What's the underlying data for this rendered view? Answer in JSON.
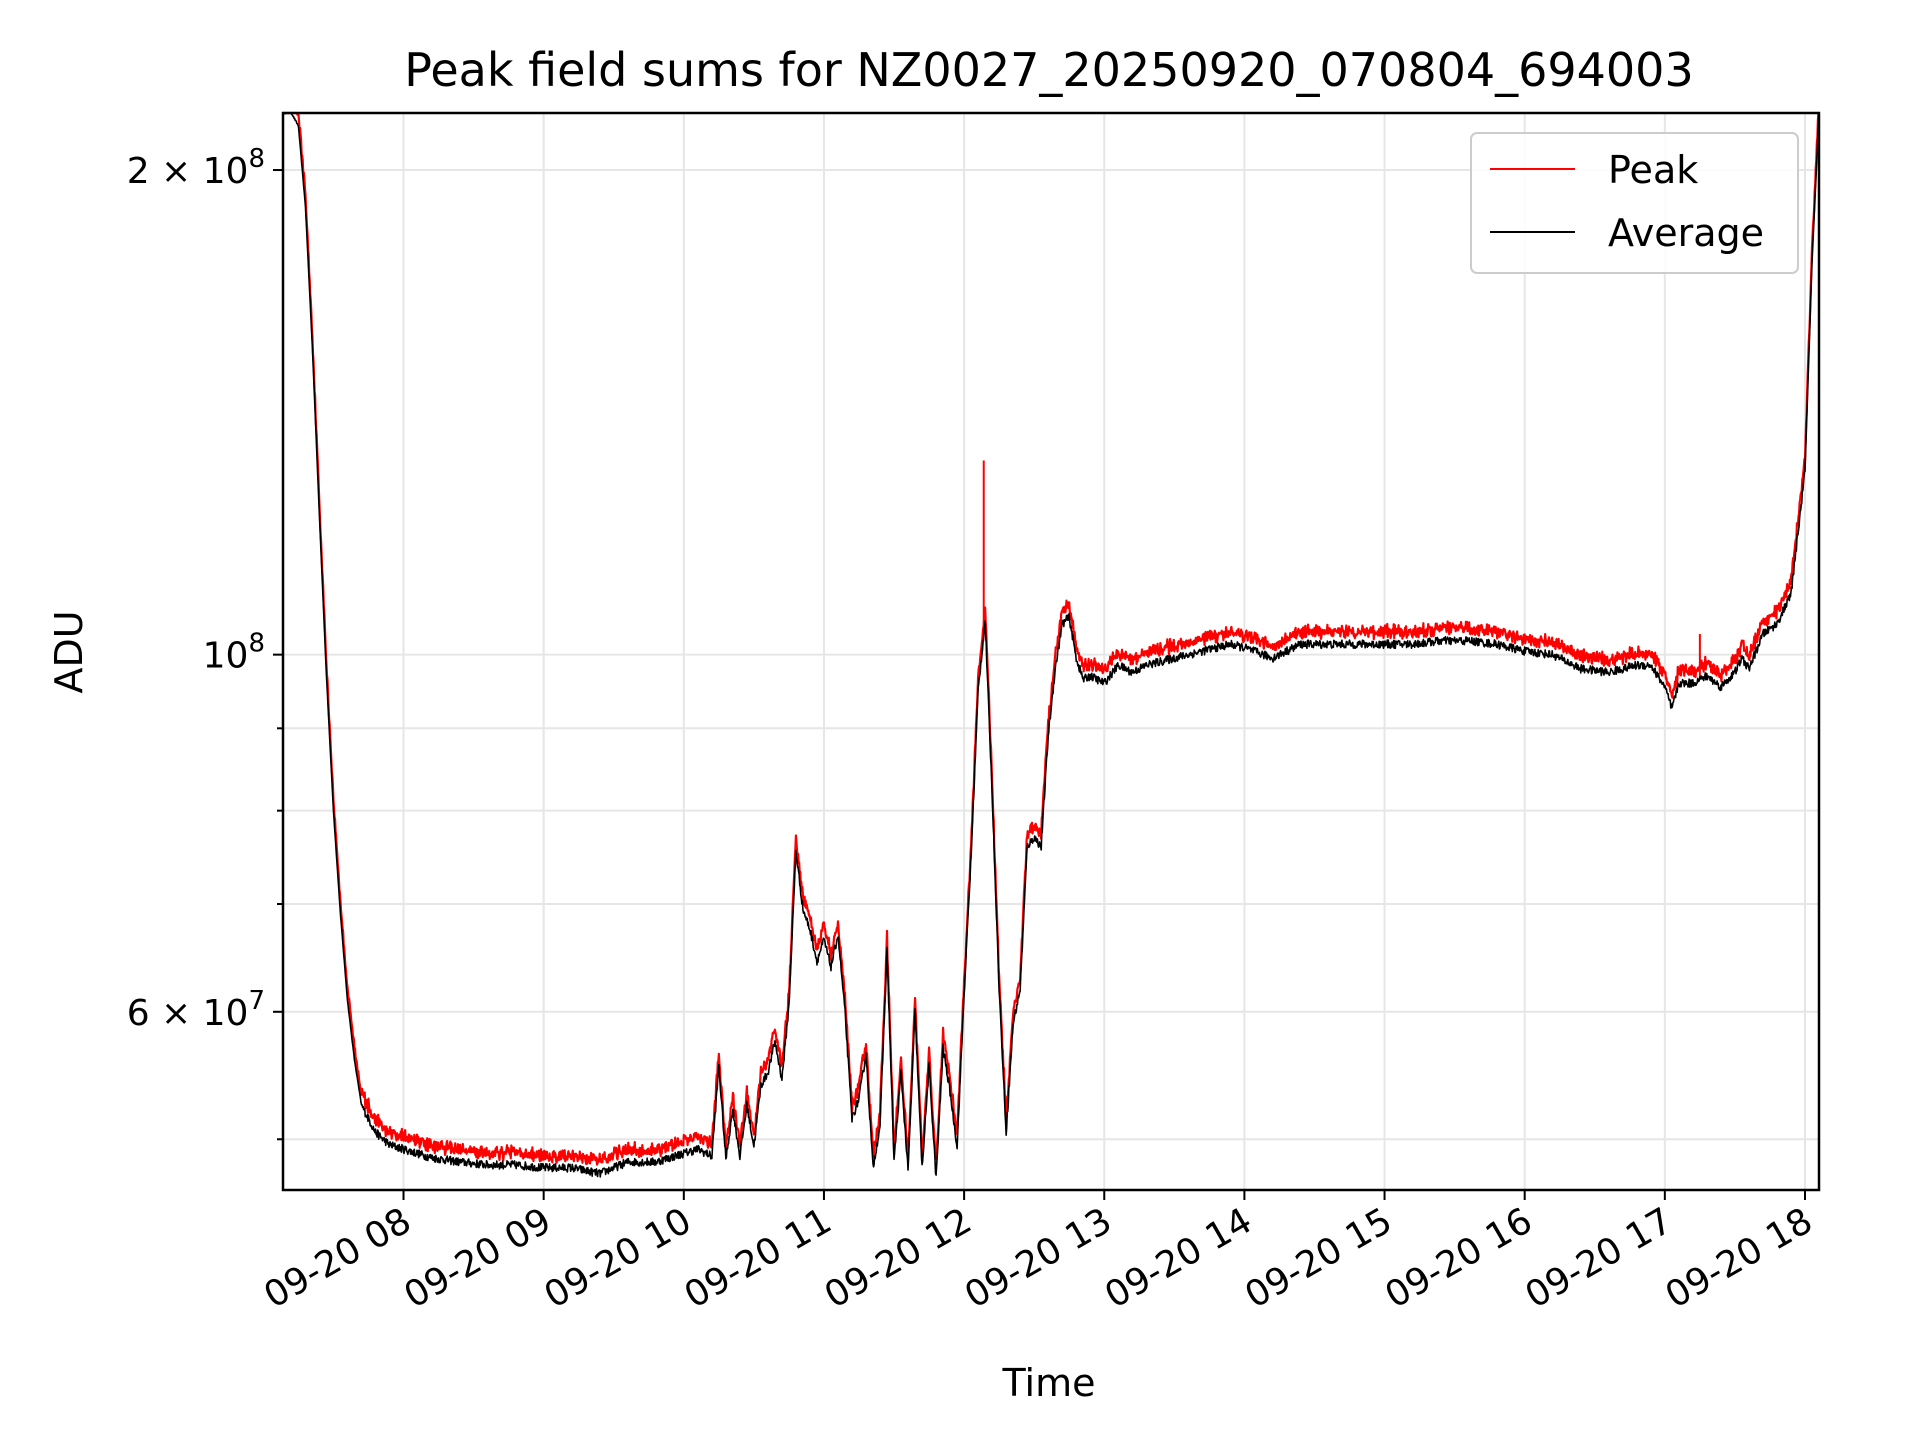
{
  "chart_data": {
    "type": "line",
    "title": "Peak field sums for NZ0027_20250920_070804_694003",
    "xlabel": "Time",
    "ylabel": "ADU",
    "yscale": "log",
    "xlim": [
      7.14,
      18.1
    ],
    "ylim": [
      46500000,
      217000000
    ],
    "grid": true,
    "legend_position": "top-right",
    "x_ticks": [
      {
        "value": 8,
        "label": "09-20 08"
      },
      {
        "value": 9,
        "label": "09-20 09"
      },
      {
        "value": 10,
        "label": "09-20 10"
      },
      {
        "value": 11,
        "label": "09-20 11"
      },
      {
        "value": 12,
        "label": "09-20 12"
      },
      {
        "value": 13,
        "label": "09-20 13"
      },
      {
        "value": 14,
        "label": "09-20 14"
      },
      {
        "value": 15,
        "label": "09-20 15"
      },
      {
        "value": 16,
        "label": "09-20 16"
      },
      {
        "value": 17,
        "label": "09-20 17"
      },
      {
        "value": 18,
        "label": "09-20 18"
      }
    ],
    "y_ticks_major": [
      {
        "value": 200000000,
        "mantissa": "2 × 10",
        "exp": "8"
      },
      {
        "value": 100000000,
        "mantissa": "10",
        "exp": "8"
      },
      {
        "value": 60000000,
        "mantissa": "6 × 10",
        "exp": "7"
      }
    ],
    "y_ticks_minor": [
      50000000,
      70000000,
      80000000,
      90000000
    ],
    "series": [
      {
        "name": "Average",
        "color": "#000000",
        "points": [
          [
            7.14,
            217
          ],
          [
            7.2,
            217
          ],
          [
            7.25,
            213
          ],
          [
            7.3,
            190
          ],
          [
            7.35,
            155
          ],
          [
            7.4,
            122
          ],
          [
            7.45,
            97
          ],
          [
            7.5,
            80
          ],
          [
            7.55,
            69
          ],
          [
            7.6,
            61
          ],
          [
            7.65,
            56
          ],
          [
            7.7,
            52.5
          ],
          [
            7.8,
            50.5
          ],
          [
            7.9,
            49.6
          ],
          [
            8.0,
            49.3
          ],
          [
            8.2,
            48.7
          ],
          [
            8.4,
            48.4
          ],
          [
            8.6,
            48.2
          ],
          [
            8.8,
            48.2
          ],
          [
            9.0,
            48.0
          ],
          [
            9.2,
            48.0
          ],
          [
            9.4,
            47.6
          ],
          [
            9.6,
            48.4
          ],
          [
            9.8,
            48.4
          ],
          [
            10.0,
            49.0
          ],
          [
            10.1,
            49.3
          ],
          [
            10.2,
            48.8
          ],
          [
            10.25,
            55.5
          ],
          [
            10.3,
            48.6
          ],
          [
            10.35,
            52.2
          ],
          [
            10.4,
            48.8
          ],
          [
            10.45,
            52.5
          ],
          [
            10.5,
            49.5
          ],
          [
            10.55,
            54.0
          ],
          [
            10.6,
            55.0
          ],
          [
            10.65,
            57.5
          ],
          [
            10.7,
            54.5
          ],
          [
            10.75,
            60.5
          ],
          [
            10.8,
            75.5
          ],
          [
            10.85,
            69.5
          ],
          [
            10.9,
            67.5
          ],
          [
            10.95,
            64.5
          ],
          [
            11.0,
            66.5
          ],
          [
            11.05,
            64.0
          ],
          [
            11.1,
            67.0
          ],
          [
            11.15,
            60.0
          ],
          [
            11.2,
            51.5
          ],
          [
            11.25,
            53.0
          ],
          [
            11.3,
            56.5
          ],
          [
            11.35,
            48.0
          ],
          [
            11.4,
            51.0
          ],
          [
            11.45,
            65.5
          ],
          [
            11.5,
            48.5
          ],
          [
            11.55,
            55.0
          ],
          [
            11.6,
            47.8
          ],
          [
            11.65,
            60.0
          ],
          [
            11.7,
            48.0
          ],
          [
            11.75,
            55.5
          ],
          [
            11.8,
            47.3
          ],
          [
            11.85,
            57.0
          ],
          [
            11.9,
            53.5
          ],
          [
            11.95,
            49.5
          ],
          [
            12.0,
            61.5
          ],
          [
            12.05,
            75.0
          ],
          [
            12.1,
            95.0
          ],
          [
            12.15,
            105.0
          ],
          [
            12.2,
            82.0
          ],
          [
            12.25,
            62.0
          ],
          [
            12.3,
            50.5
          ],
          [
            12.35,
            59.0
          ],
          [
            12.4,
            62.0
          ],
          [
            12.45,
            76.0
          ],
          [
            12.5,
            77.0
          ],
          [
            12.55,
            76.0
          ],
          [
            12.6,
            89.0
          ],
          [
            12.65,
            98.0
          ],
          [
            12.7,
            104.5
          ],
          [
            12.75,
            105.5
          ],
          [
            12.8,
            99.5
          ],
          [
            12.85,
            96.5
          ],
          [
            12.9,
            97.0
          ],
          [
            13.0,
            96.0
          ],
          [
            13.1,
            98.5
          ],
          [
            13.2,
            97.5
          ],
          [
            13.3,
            98.5
          ],
          [
            13.5,
            99.5
          ],
          [
            13.7,
            100.5
          ],
          [
            13.9,
            101.5
          ],
          [
            14.0,
            101.0
          ],
          [
            14.2,
            99.5
          ],
          [
            14.4,
            101.5
          ],
          [
            14.6,
            101.5
          ],
          [
            14.8,
            101.5
          ],
          [
            15.0,
            101.5
          ],
          [
            15.2,
            101.5
          ],
          [
            15.4,
            102.0
          ],
          [
            15.6,
            102.0
          ],
          [
            15.8,
            101.5
          ],
          [
            16.0,
            100.5
          ],
          [
            16.2,
            100.0
          ],
          [
            16.4,
            98.0
          ],
          [
            16.6,
            97.5
          ],
          [
            16.8,
            98.5
          ],
          [
            16.9,
            98.5
          ],
          [
            17.0,
            95.5
          ],
          [
            17.05,
            92.5
          ],
          [
            17.1,
            96.0
          ],
          [
            17.2,
            96.0
          ],
          [
            17.3,
            97.0
          ],
          [
            17.4,
            95.5
          ],
          [
            17.5,
            97.5
          ],
          [
            17.55,
            99.5
          ],
          [
            17.6,
            98.0
          ],
          [
            17.7,
            103.0
          ],
          [
            17.8,
            104.5
          ],
          [
            17.9,
            109.0
          ],
          [
            18.0,
            130.0
          ],
          [
            18.05,
            175.0
          ],
          [
            18.1,
            217.0
          ]
        ]
      },
      {
        "name": "Peak",
        "color": "#ff0000",
        "offset": 1.012,
        "spikes": [
          [
            12.14,
            132.0
          ],
          [
            17.25,
            103.0
          ],
          [
            17.7,
            103.0
          ]
        ]
      }
    ]
  }
}
